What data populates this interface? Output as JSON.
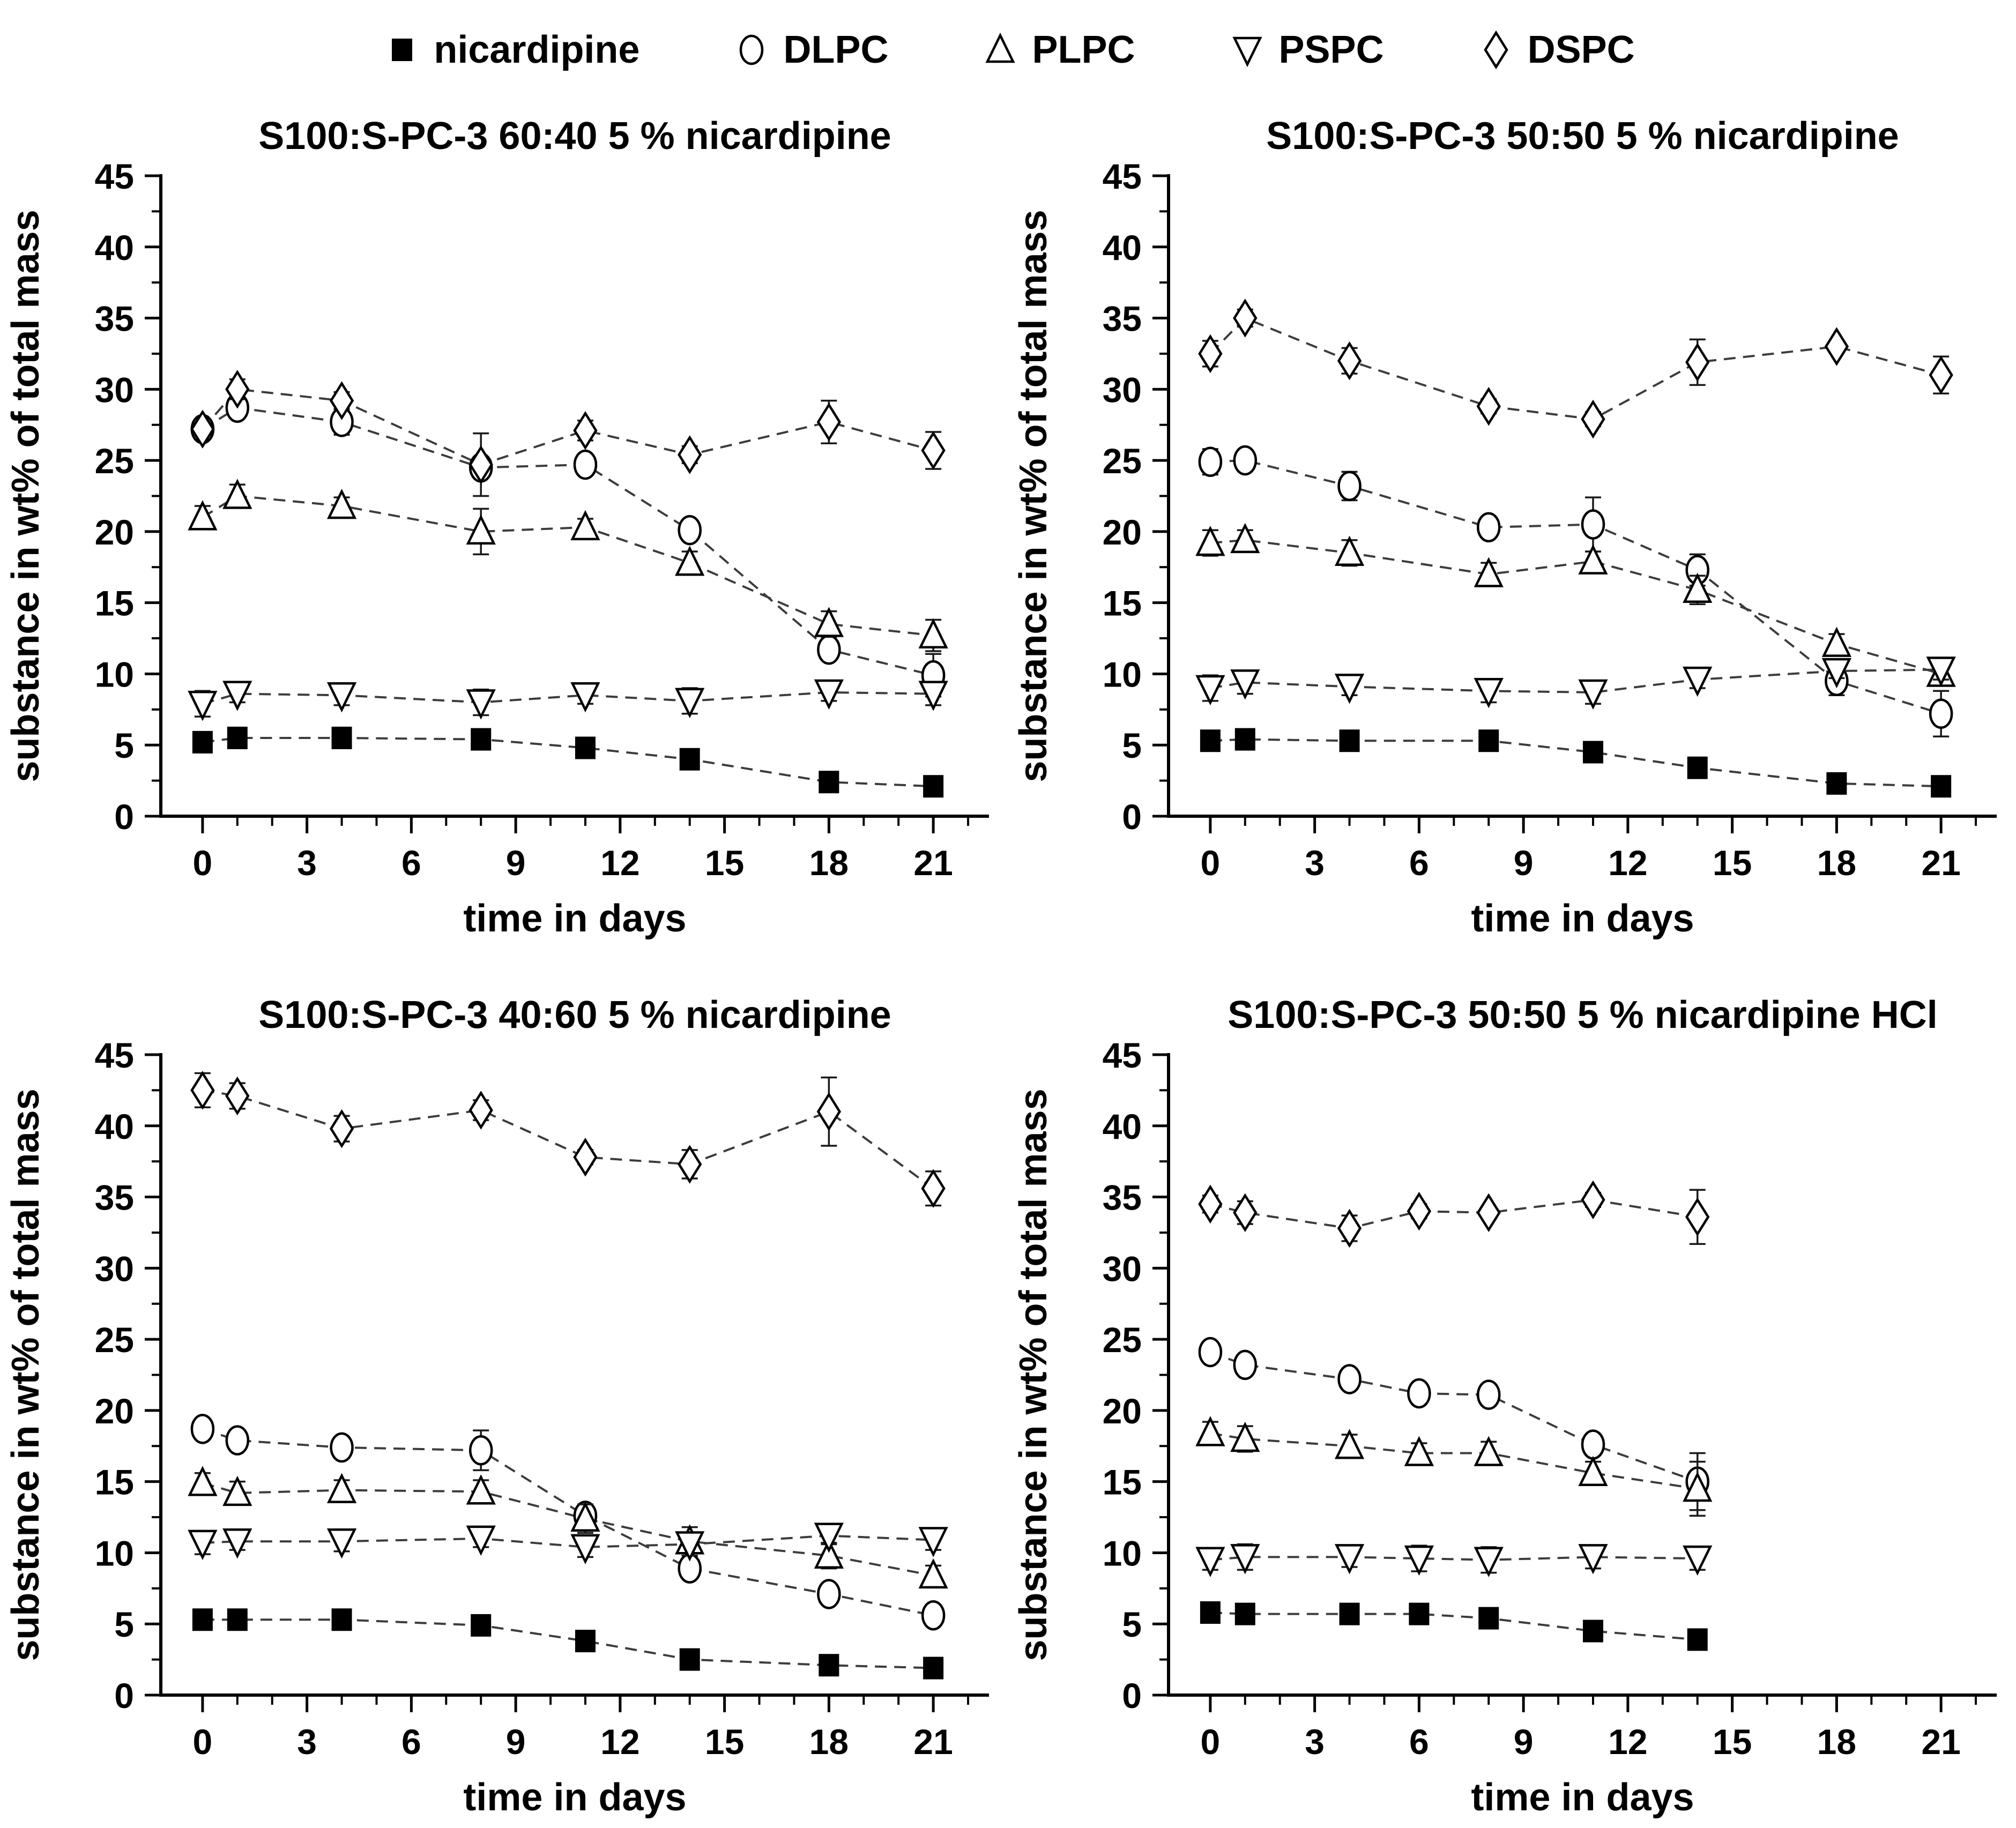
{
  "figure": {
    "background": "#ffffff",
    "axis_color": "#000000",
    "line_color": "#3c3c3c",
    "marker_stroke": "#000000",
    "marker_fill_open": "#ffffff",
    "marker_fill_solid": "#000000"
  },
  "legend": {
    "items": [
      {
        "label": "nicardipine",
        "marker": "square-filled"
      },
      {
        "label": "DLPC",
        "marker": "circle-open"
      },
      {
        "label": "PLPC",
        "marker": "triangle-up-open"
      },
      {
        "label": "PSPC",
        "marker": "triangle-down-open"
      },
      {
        "label": "DSPC",
        "marker": "diamond-open"
      }
    ]
  },
  "chart_data": [
    {
      "type": "line",
      "title": "S100:S-PC-3 60:40 5 % nicardipine",
      "xlabel": "time in days",
      "ylabel": "substance in wt% of total mass",
      "xlim": [
        -1.2,
        22.6
      ],
      "ylim": [
        0,
        45
      ],
      "x_major_ticks": [
        0,
        3,
        6,
        9,
        12,
        15,
        18,
        21
      ],
      "x_minor_step": 1,
      "y_major_ticks": [
        0,
        5,
        10,
        15,
        20,
        25,
        30,
        35,
        40,
        45
      ],
      "y_minor_step": 2.5,
      "grid": false,
      "x": [
        0,
        1,
        4,
        8,
        11,
        14,
        18,
        21
      ],
      "series": [
        {
          "name": "nicardipine",
          "marker": "square-filled",
          "values": [
            5.2,
            5.5,
            5.5,
            5.4,
            4.8,
            4.0,
            2.4,
            2.1
          ],
          "errors": [
            0.2,
            0.2,
            0.2,
            0.2,
            0.2,
            0.2,
            0.2,
            0.2
          ]
        },
        {
          "name": "DLPC",
          "marker": "circle-open",
          "values": [
            27.2,
            28.7,
            27.7,
            24.5,
            24.7,
            20.1,
            11.7,
            9.9
          ],
          "errors": [
            0.4,
            0.5,
            0.9,
            0.6,
            0.5,
            0.6,
            0.7,
            1.5
          ]
        },
        {
          "name": "PLPC",
          "marker": "triangle-up-open",
          "values": [
            21.0,
            22.5,
            21.8,
            20.0,
            20.3,
            17.8,
            13.5,
            12.7
          ],
          "errors": [
            0.8,
            0.8,
            0.6,
            1.6,
            0.6,
            0.8,
            0.9,
            1.1
          ]
        },
        {
          "name": "PSPC",
          "marker": "triangle-down-open",
          "values": [
            7.9,
            8.6,
            8.5,
            8.0,
            8.5,
            8.1,
            8.7,
            8.6
          ],
          "errors": [
            0.9,
            0.6,
            0.7,
            0.9,
            0.6,
            0.9,
            0.6,
            0.8
          ]
        },
        {
          "name": "DSPC",
          "marker": "diamond-open",
          "values": [
            27.2,
            30.0,
            29.2,
            24.7,
            27.1,
            25.4,
            27.7,
            25.7
          ],
          "errors": [
            0.4,
            0.7,
            0.6,
            2.2,
            0.7,
            0.6,
            1.5,
            1.3
          ]
        }
      ]
    },
    {
      "type": "line",
      "title": "S100:S-PC-3 50:50 5 % nicardipine",
      "xlabel": "time in days",
      "ylabel": "substance in wt% of total mass",
      "xlim": [
        -1.2,
        22.6
      ],
      "ylim": [
        0,
        45
      ],
      "x_major_ticks": [
        0,
        3,
        6,
        9,
        12,
        15,
        18,
        21
      ],
      "x_minor_step": 1,
      "y_major_ticks": [
        0,
        5,
        10,
        15,
        20,
        25,
        30,
        35,
        40,
        45
      ],
      "y_minor_step": 2.5,
      "grid": false,
      "x": [
        0,
        1,
        4,
        8,
        11,
        14,
        18,
        21
      ],
      "series": [
        {
          "name": "nicardipine",
          "marker": "square-filled",
          "values": [
            5.3,
            5.4,
            5.3,
            5.3,
            4.5,
            3.4,
            2.3,
            2.1
          ],
          "errors": [
            0.2,
            0.2,
            0.2,
            0.2,
            0.2,
            0.2,
            0.2,
            0.2
          ]
        },
        {
          "name": "DLPC",
          "marker": "circle-open",
          "values": [
            24.9,
            25.0,
            23.2,
            20.3,
            20.5,
            17.3,
            9.5,
            7.2
          ],
          "errors": [
            0.9,
            0.5,
            1.0,
            0.5,
            1.9,
            1.1,
            1.0,
            1.6
          ]
        },
        {
          "name": "PLPC",
          "marker": "triangle-up-open",
          "values": [
            19.2,
            19.4,
            18.5,
            17.0,
            17.9,
            15.9,
            12.1,
            10.0
          ],
          "errors": [
            0.9,
            0.7,
            0.9,
            0.8,
            0.7,
            1.0,
            0.7,
            0.7
          ]
        },
        {
          "name": "PSPC",
          "marker": "triangle-down-open",
          "values": [
            9.0,
            9.4,
            9.1,
            8.8,
            8.7,
            9.6,
            10.2,
            10.3
          ],
          "errors": [
            0.9,
            0.8,
            0.6,
            0.8,
            0.8,
            0.6,
            0.5,
            0.7
          ]
        },
        {
          "name": "DSPC",
          "marker": "diamond-open",
          "values": [
            32.5,
            35.0,
            32.0,
            28.8,
            27.9,
            31.9,
            33.0,
            31.0
          ],
          "errors": [
            0.9,
            0.6,
            0.9,
            0.5,
            0.5,
            1.6,
            0.4,
            1.3
          ]
        }
      ]
    },
    {
      "type": "line",
      "title": "S100:S-PC-3 40:60 5 % nicardipine",
      "xlabel": "time in days",
      "ylabel": "substance in wt% of total mass",
      "xlim": [
        -1.2,
        22.6
      ],
      "ylim": [
        0,
        45
      ],
      "x_major_ticks": [
        0,
        3,
        6,
        9,
        12,
        15,
        18,
        21
      ],
      "x_minor_step": 1,
      "y_major_ticks": [
        0,
        5,
        10,
        15,
        20,
        25,
        30,
        35,
        40,
        45
      ],
      "y_minor_step": 2.5,
      "grid": false,
      "x": [
        0,
        1,
        4,
        8,
        11,
        14,
        18,
        21
      ],
      "series": [
        {
          "name": "nicardipine",
          "marker": "square-filled",
          "values": [
            5.3,
            5.3,
            5.3,
            4.9,
            3.8,
            2.5,
            2.1,
            1.9
          ],
          "errors": [
            0.2,
            0.2,
            0.2,
            0.2,
            0.2,
            0.2,
            0.2,
            0.2
          ]
        },
        {
          "name": "DLPC",
          "marker": "circle-open",
          "values": [
            18.7,
            17.9,
            17.4,
            17.2,
            12.6,
            8.9,
            7.1,
            5.6
          ],
          "errors": [
            0.5,
            0.5,
            0.5,
            1.4,
            0.5,
            0.5,
            0.4,
            0.4
          ]
        },
        {
          "name": "PLPC",
          "marker": "triangle-up-open",
          "values": [
            14.9,
            14.2,
            14.4,
            14.3,
            12.4,
            10.8,
            9.8,
            8.4
          ],
          "errors": [
            0.7,
            0.8,
            0.7,
            0.8,
            1.0,
            1.0,
            0.9,
            0.7
          ]
        },
        {
          "name": "PSPC",
          "marker": "triangle-down-open",
          "values": [
            10.7,
            10.8,
            10.8,
            11.0,
            10.4,
            10.6,
            11.2,
            10.9
          ],
          "errors": [
            0.8,
            0.6,
            0.7,
            0.6,
            0.7,
            0.8,
            0.6,
            0.7
          ]
        },
        {
          "name": "DSPC",
          "marker": "diamond-open",
          "values": [
            42.5,
            42.1,
            39.8,
            41.1,
            37.8,
            37.3,
            41.0,
            35.6
          ],
          "errors": [
            1.2,
            0.9,
            0.9,
            0.7,
            0.5,
            1.0,
            2.4,
            1.2
          ]
        }
      ]
    },
    {
      "type": "line",
      "title": "S100:S-PC-3 50:50 5 % nicardipine HCl",
      "xlabel": "time in days",
      "ylabel": "substance in wt% of total mass",
      "xlim": [
        -1.2,
        22.6
      ],
      "ylim": [
        0,
        45
      ],
      "x_major_ticks": [
        0,
        3,
        6,
        9,
        12,
        15,
        18,
        21
      ],
      "x_minor_step": 1,
      "y_major_ticks": [
        0,
        5,
        10,
        15,
        20,
        25,
        30,
        35,
        40,
        45
      ],
      "y_minor_step": 2.5,
      "grid": false,
      "x": [
        0,
        1,
        4,
        6,
        8,
        11,
        14
      ],
      "series": [
        {
          "name": "nicardipine",
          "marker": "square-filled",
          "values": [
            5.8,
            5.7,
            5.7,
            5.7,
            5.4,
            4.5,
            3.9
          ],
          "errors": [
            0.2,
            0.2,
            0.2,
            0.2,
            0.2,
            0.2,
            0.2
          ]
        },
        {
          "name": "DLPC",
          "marker": "circle-open",
          "values": [
            24.1,
            23.2,
            22.2,
            21.2,
            21.1,
            17.6,
            15.0
          ],
          "errors": [
            0.5,
            0.5,
            0.5,
            0.5,
            0.5,
            0.6,
            2.0
          ]
        },
        {
          "name": "PLPC",
          "marker": "triangle-up-open",
          "values": [
            18.4,
            18.0,
            17.5,
            17.0,
            17.0,
            15.6,
            14.5
          ],
          "errors": [
            0.8,
            0.9,
            0.8,
            0.7,
            0.8,
            0.8,
            1.9
          ]
        },
        {
          "name": "PSPC",
          "marker": "triangle-down-open",
          "values": [
            9.5,
            9.7,
            9.7,
            9.6,
            9.5,
            9.7,
            9.6
          ],
          "errors": [
            0.7,
            0.9,
            0.7,
            0.9,
            0.9,
            0.8,
            0.8
          ]
        },
        {
          "name": "DSPC",
          "marker": "diamond-open",
          "values": [
            34.5,
            33.9,
            32.8,
            34.0,
            33.9,
            34.8,
            33.6
          ],
          "errors": [
            0.6,
            0.8,
            0.9,
            0.5,
            0.4,
            0.5,
            1.9
          ]
        }
      ]
    }
  ]
}
